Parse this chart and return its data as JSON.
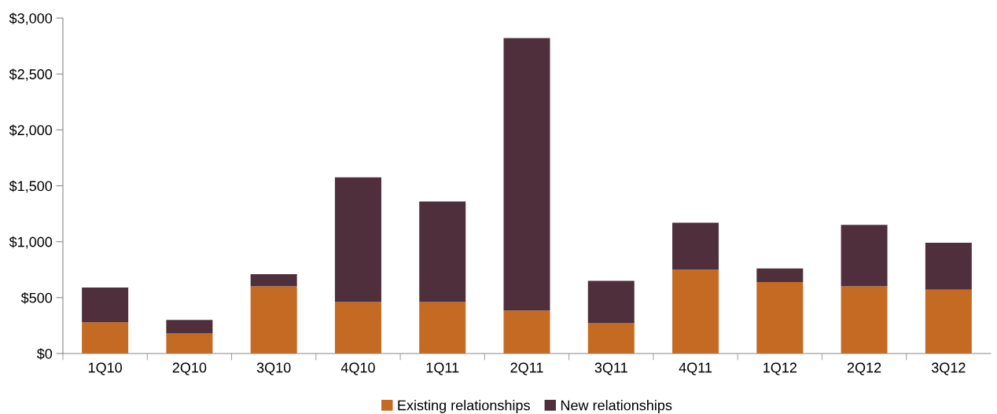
{
  "chart_data": {
    "type": "bar",
    "stacked": true,
    "categories": [
      "1Q10",
      "2Q10",
      "3Q10",
      "4Q10",
      "1Q11",
      "2Q11",
      "3Q11",
      "4Q11",
      "1Q12",
      "2Q12",
      "3Q12"
    ],
    "series": [
      {
        "name": "Existing relationships",
        "color": "#c46a22",
        "values": [
          280,
          180,
          600,
          460,
          460,
          385,
          270,
          750,
          640,
          600,
          570
        ]
      },
      {
        "name": "New relationships",
        "color": "#4f2f3b",
        "values": [
          310,
          120,
          110,
          1115,
          900,
          2435,
          380,
          420,
          120,
          550,
          420
        ]
      }
    ],
    "ylim": [
      0,
      3000
    ],
    "yticks": [
      {
        "value": 0,
        "label": "$0"
      },
      {
        "value": 500,
        "label": "$500"
      },
      {
        "value": 1000,
        "label": "$1,000"
      },
      {
        "value": 1500,
        "label": "$1,500"
      },
      {
        "value": 2000,
        "label": "$2,000"
      },
      {
        "value": 2500,
        "label": "$2,500"
      },
      {
        "value": 3000,
        "label": "$3,000"
      }
    ],
    "grid": false,
    "legend": "bottom"
  }
}
